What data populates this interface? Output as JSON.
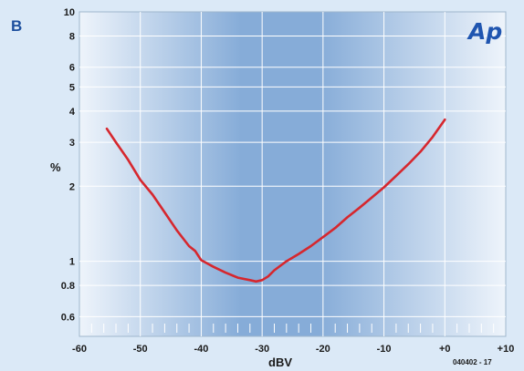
{
  "panel_label": "B",
  "logo_text": "Ap",
  "figure_code": "040402 - 17",
  "colors": {
    "background": "#dbe9f7",
    "plot_center": "#86acd8",
    "plot_edge": "#eef4fb",
    "grid": "#ffffff",
    "curve": "#d6272e",
    "logo": "#1f55b0",
    "panel_letter": "#1d4f9e"
  },
  "chart_data": {
    "type": "line",
    "title": "",
    "xlabel": "dBV",
    "ylabel": "%",
    "xlim": [
      -60,
      10
    ],
    "ylim": [
      0.5,
      10
    ],
    "y_scale": "log",
    "grid": true,
    "x_ticks": [
      -60,
      -50,
      -40,
      -30,
      -20,
      -10,
      0,
      10
    ],
    "x_tick_labels": [
      "-60",
      "-50",
      "-40",
      "-30",
      "-20",
      "-10",
      "+0",
      "+10"
    ],
    "y_ticks": [
      0.6,
      0.8,
      1,
      2,
      3,
      4,
      5,
      6,
      8,
      10
    ],
    "y_tick_labels": [
      "0.6",
      "0.8",
      "1",
      "2",
      "3",
      "4",
      "5",
      "6",
      "8",
      "10"
    ],
    "series": [
      {
        "color": "#d6272e",
        "x": [
          -55.5,
          -54,
          -52,
          -50,
          -48,
          -46,
          -44,
          -42,
          -41,
          -40,
          -38,
          -36,
          -34,
          -32,
          -31,
          -30,
          -29,
          -28,
          -27,
          -26,
          -24,
          -22,
          -20,
          -18,
          -16,
          -14,
          -12,
          -10,
          -8,
          -6,
          -4,
          -2,
          0
        ],
        "y": [
          3.4,
          3.0,
          2.55,
          2.12,
          1.85,
          1.57,
          1.33,
          1.15,
          1.1,
          1.01,
          0.95,
          0.9,
          0.86,
          0.84,
          0.83,
          0.84,
          0.87,
          0.92,
          0.96,
          1.0,
          1.07,
          1.15,
          1.25,
          1.36,
          1.5,
          1.64,
          1.8,
          1.98,
          2.2,
          2.45,
          2.75,
          3.15,
          3.7
        ]
      }
    ]
  }
}
